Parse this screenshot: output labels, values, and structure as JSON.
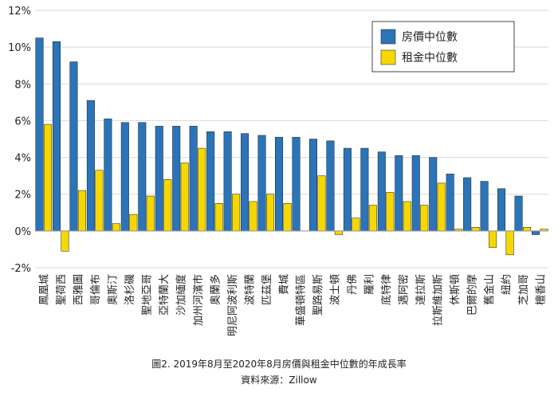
{
  "caption": {
    "line1": "圖2. 2019年8月至2020年8月房價與租金中位數的年成長率",
    "line2": "資料來源：Zillow"
  },
  "chart_data": {
    "type": "bar",
    "categories": [
      "鳳凰城",
      "聖荷西",
      "西雅圖",
      "哥倫布",
      "奧斯汀",
      "洛杉磯",
      "聖地亞哥",
      "亞特蘭大",
      "沙加緬度",
      "加州河濱市",
      "奧蘭多",
      "明尼阿波利斯",
      "波特蘭",
      "匹茲堡",
      "費城",
      "華盛頓特區",
      "聖路易斯",
      "波士頓",
      "丹佛",
      "羅利",
      "底特律",
      "邁阿密",
      "達拉斯",
      "拉斯維加斯",
      "休斯頓",
      "巴爾的摩",
      "舊金山",
      "紐約",
      "芝加哥",
      "檀香山"
    ],
    "series": [
      {
        "name": "房價中位數",
        "color": "#2b74b8",
        "values": [
          10.5,
          10.3,
          9.2,
          7.1,
          6.1,
          5.9,
          5.9,
          5.7,
          5.7,
          5.7,
          5.4,
          5.4,
          5.3,
          5.2,
          5.1,
          5.1,
          5.0,
          4.9,
          4.5,
          4.5,
          4.3,
          4.1,
          4.1,
          4.0,
          3.1,
          2.9,
          2.7,
          2.3,
          1.9,
          -0.2
        ]
      },
      {
        "name": "租金中位數",
        "color": "#f5d800",
        "values": [
          5.8,
          -1.1,
          2.2,
          3.3,
          0.4,
          0.9,
          1.9,
          2.8,
          3.7,
          4.5,
          1.5,
          2.0,
          1.6,
          2.0,
          1.5,
          0.0,
          3.0,
          -0.2,
          0.7,
          1.4,
          2.1,
          1.6,
          1.4,
          2.6,
          0.1,
          0.2,
          -0.9,
          -1.3,
          0.2,
          0.1
        ]
      }
    ],
    "ylim": [
      -2,
      12
    ],
    "yticks": [
      -2,
      0,
      2,
      4,
      6,
      8,
      10,
      12
    ],
    "ytick_labels": [
      "-2%",
      "0%",
      "2%",
      "4%",
      "6%",
      "8%",
      "10%",
      "12%"
    ],
    "grid": "horizontal",
    "legend_position": "top-right"
  }
}
